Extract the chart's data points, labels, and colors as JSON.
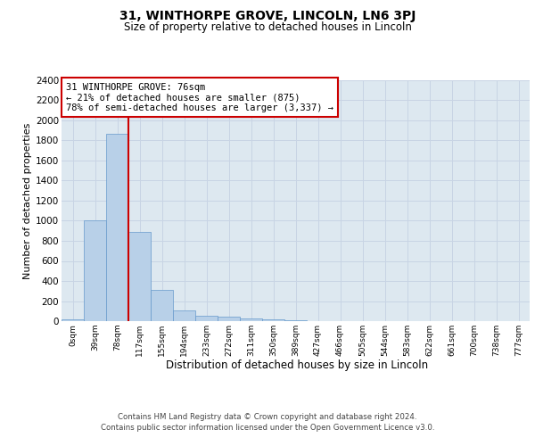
{
  "title1": "31, WINTHORPE GROVE, LINCOLN, LN6 3PJ",
  "title2": "Size of property relative to detached houses in Lincoln",
  "xlabel": "Distribution of detached houses by size in Lincoln",
  "ylabel": "Number of detached properties",
  "bin_labels": [
    "0sqm",
    "39sqm",
    "78sqm",
    "117sqm",
    "155sqm",
    "194sqm",
    "233sqm",
    "272sqm",
    "311sqm",
    "350sqm",
    "389sqm",
    "427sqm",
    "466sqm",
    "505sqm",
    "544sqm",
    "583sqm",
    "622sqm",
    "661sqm",
    "700sqm",
    "738sqm",
    "777sqm"
  ],
  "bar_values": [
    20,
    1005,
    1870,
    890,
    310,
    105,
    50,
    45,
    30,
    20,
    5,
    3,
    2,
    1,
    1,
    0,
    0,
    0,
    0,
    0,
    0
  ],
  "bar_color": "#b8d0e8",
  "bar_edge_color": "#6699cc",
  "grid_color": "#c8d4e4",
  "bg_color": "#dde8f0",
  "vline_color": "#cc0000",
  "ylim": [
    0,
    2400
  ],
  "yticks": [
    0,
    200,
    400,
    600,
    800,
    1000,
    1200,
    1400,
    1600,
    1800,
    2000,
    2200,
    2400
  ],
  "annotation_text": "31 WINTHORPE GROVE: 76sqm\n← 21% of detached houses are smaller (875)\n78% of semi-detached houses are larger (3,337) →",
  "annotation_box_color": "#ffffff",
  "annotation_border_color": "#cc0000",
  "footer_line1": "Contains HM Land Registry data © Crown copyright and database right 2024.",
  "footer_line2": "Contains public sector information licensed under the Open Government Licence v3.0.",
  "title1_fontsize": 10,
  "title2_fontsize": 8.5,
  "ylabel_fontsize": 8,
  "xlabel_fontsize": 8.5,
  "ytick_fontsize": 7.5,
  "xtick_fontsize": 6.5
}
